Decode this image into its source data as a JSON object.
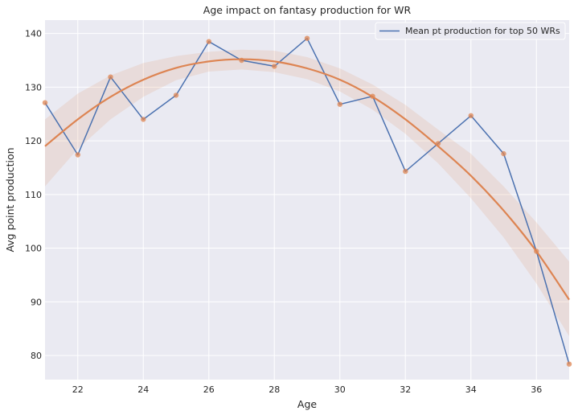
{
  "chart_data": {
    "type": "line",
    "title": "Age impact on fantasy production for WR",
    "xlabel": "Age",
    "ylabel": "Avg point production",
    "xlim": [
      21,
      37
    ],
    "ylim": [
      75.5,
      142.5
    ],
    "x_ticks": [
      22,
      24,
      26,
      28,
      30,
      32,
      34,
      36
    ],
    "y_ticks": [
      80,
      90,
      100,
      110,
      120,
      130,
      140
    ],
    "grid": true,
    "legend_position": "top-right",
    "series": [
      {
        "name": "Mean pt production for top 50 WRs",
        "kind": "line",
        "color": "#4c72b0",
        "x": [
          21,
          22,
          23,
          24,
          25,
          26,
          27,
          28,
          29,
          30,
          31,
          32,
          33,
          34,
          35,
          36,
          37
        ],
        "y": [
          127.1,
          117.4,
          131.9,
          124.0,
          128.5,
          138.5,
          135.0,
          133.9,
          139.1,
          126.8,
          128.3,
          114.3,
          119.5,
          124.7,
          117.6,
          99.4,
          78.4
        ]
      },
      {
        "kind": "scatter",
        "color": "#dd8452",
        "x": [
          21,
          22,
          23,
          24,
          25,
          26,
          27,
          28,
          29,
          30,
          31,
          32,
          33,
          34,
          35,
          36,
          37
        ],
        "y": [
          127.1,
          117.4,
          131.9,
          124.0,
          128.5,
          138.5,
          135.0,
          133.9,
          139.1,
          126.8,
          128.3,
          114.3,
          119.5,
          124.7,
          117.6,
          99.4,
          78.4
        ]
      },
      {
        "kind": "regression",
        "color": "#dd8452",
        "x": [
          21,
          22,
          23,
          24,
          25,
          26,
          27,
          28,
          29,
          30,
          31,
          32,
          33,
          34,
          35,
          36,
          37
        ],
        "y": [
          119.0,
          124.0,
          128.2,
          131.4,
          133.6,
          134.8,
          135.2,
          134.8,
          133.5,
          131.4,
          128.2,
          124.0,
          119.0,
          113.5,
          107.0,
          99.4,
          90.4
        ],
        "ci_lower": [
          111.5,
          118.5,
          124.0,
          128.2,
          131.3,
          132.9,
          133.3,
          132.8,
          131.5,
          129.2,
          125.8,
          121.3,
          115.8,
          109.3,
          102.0,
          93.4,
          83.6
        ],
        "ci_upper": [
          124.0,
          128.8,
          132.2,
          134.5,
          135.8,
          136.6,
          137.0,
          136.8,
          135.6,
          133.5,
          130.5,
          126.7,
          122.1,
          117.6,
          111.5,
          104.8,
          97.5
        ]
      }
    ]
  }
}
